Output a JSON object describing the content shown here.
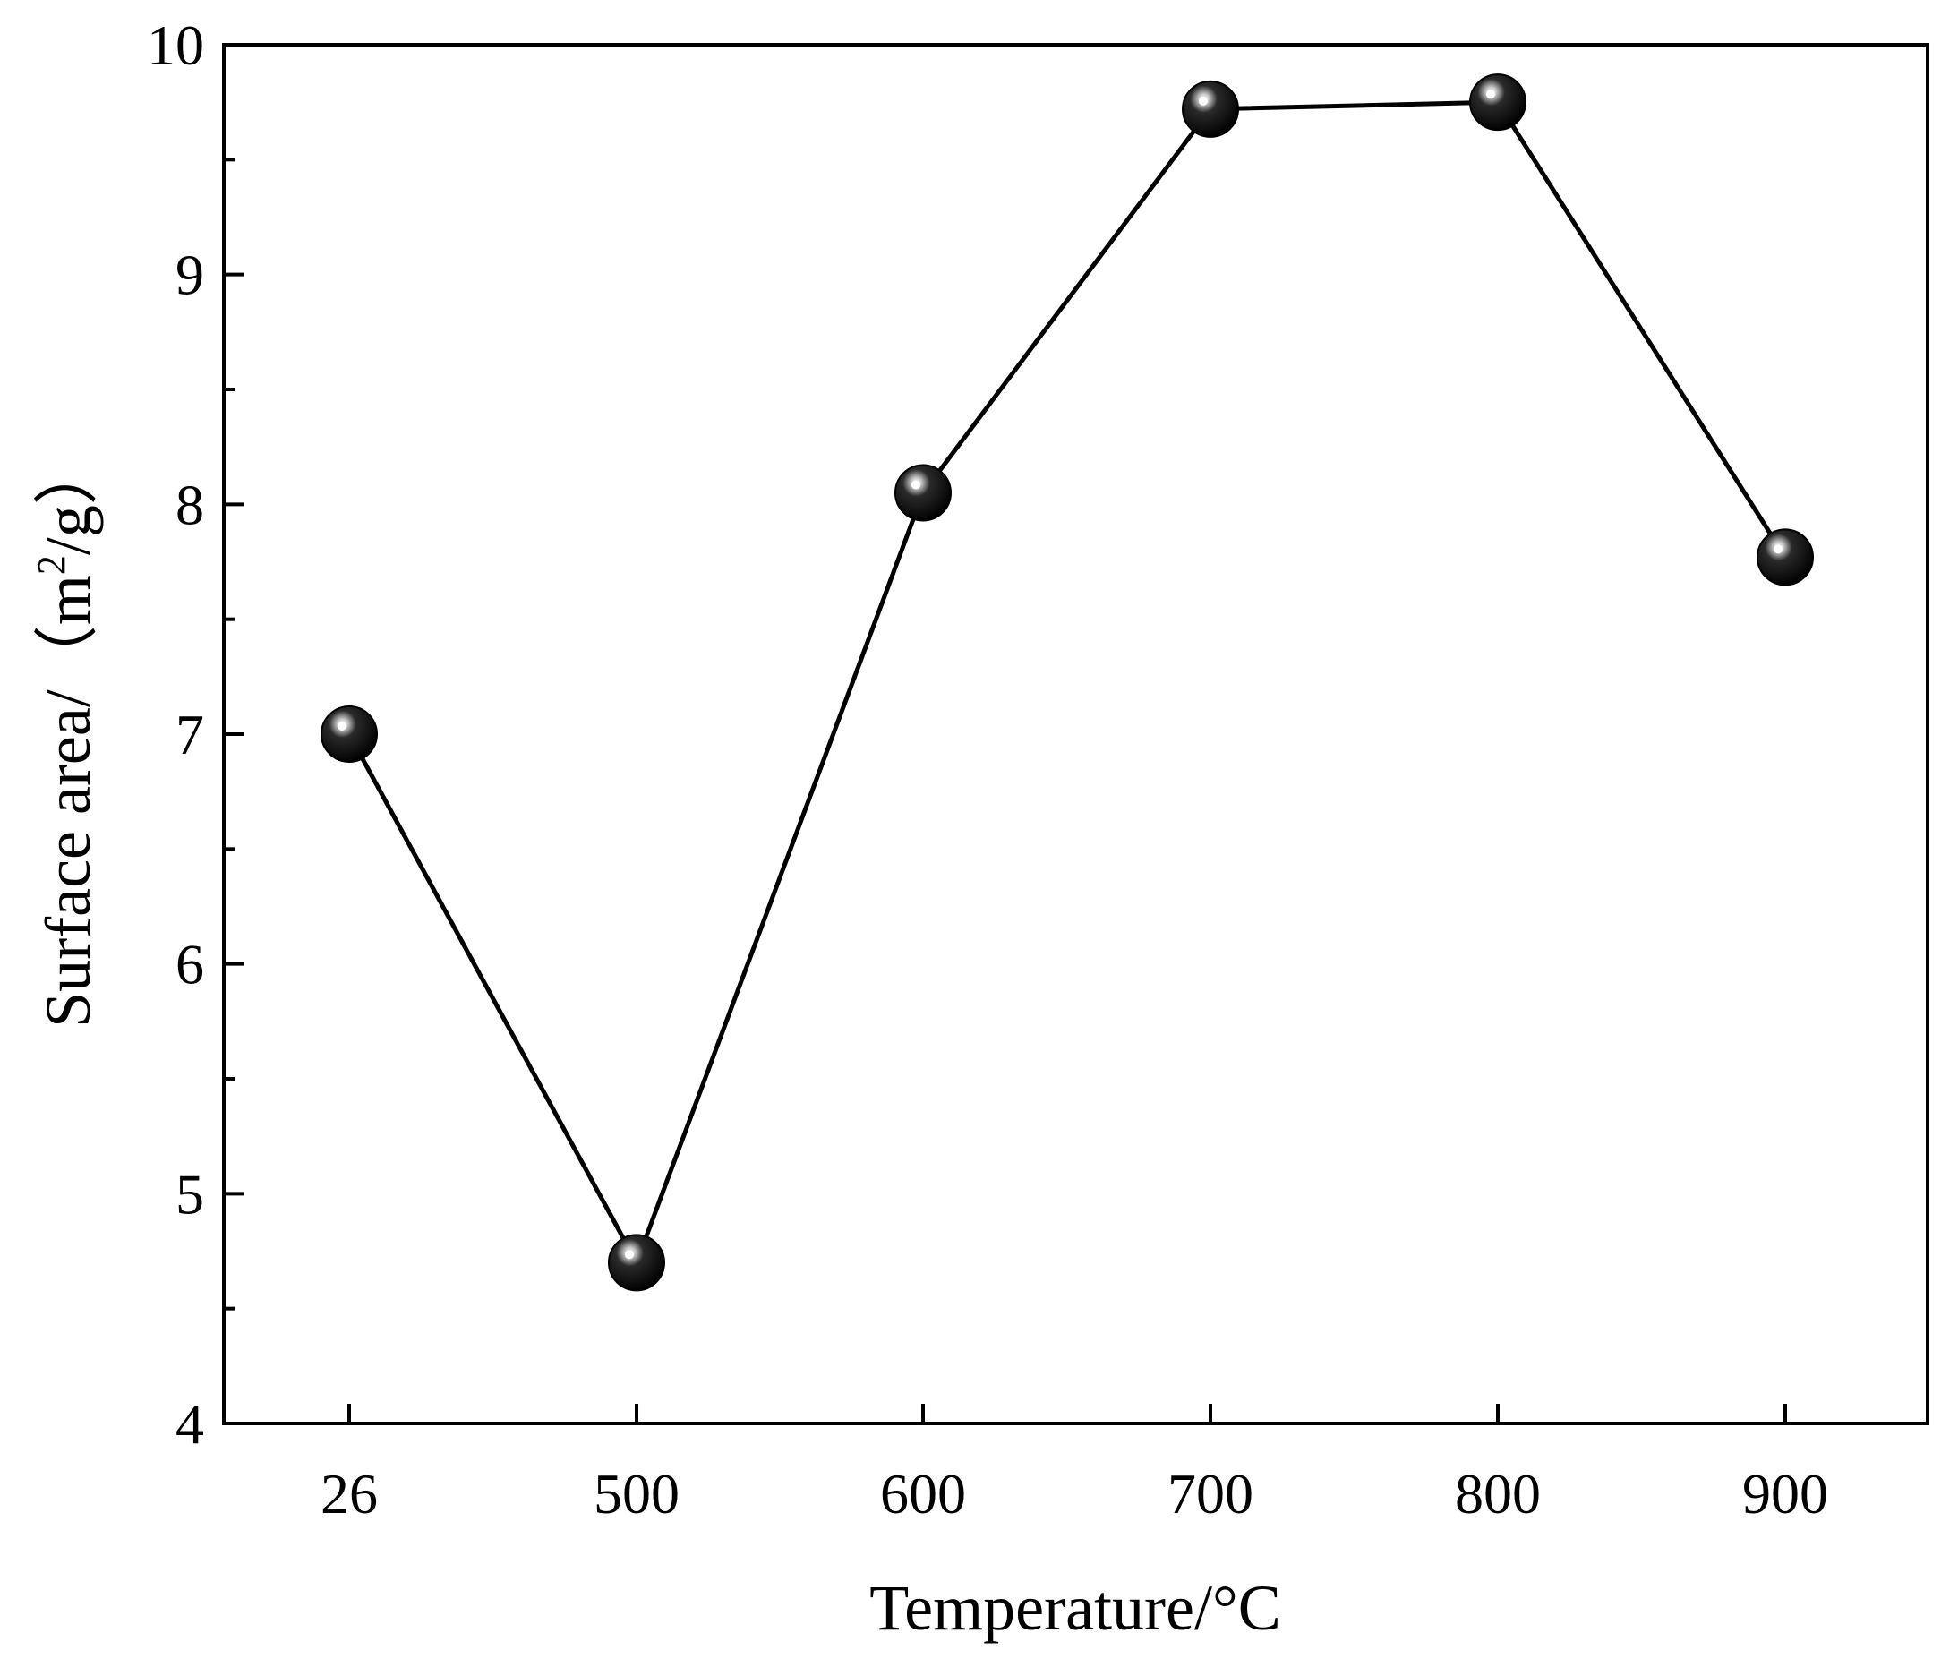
{
  "chart_data": {
    "type": "line",
    "title": "",
    "xlabel": "Temperature/°C",
    "ylabel": {
      "pre": "Surface area/（m",
      "sup": "2",
      "post": "/g）"
    },
    "categories": [
      "26",
      "500",
      "600",
      "700",
      "800",
      "900"
    ],
    "series": [
      {
        "values": [
          7.0,
          4.7,
          8.05,
          9.72,
          9.75,
          7.77
        ]
      }
    ],
    "ylim": [
      4,
      10
    ],
    "yticks": [
      "4",
      "5",
      "6",
      "7",
      "8",
      "9",
      "10"
    ],
    "grid": false,
    "colors": {
      "line": "#000000",
      "marker": "#000000",
      "highlight": "#ffffff"
    }
  }
}
